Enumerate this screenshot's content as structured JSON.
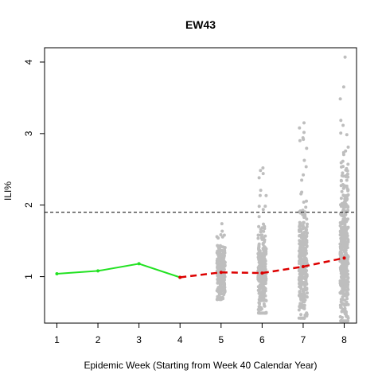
{
  "chart_data": {
    "type": "scatter",
    "title": "EW43",
    "xlabel": "Epidemic Week (Starting from Week 40 Calendar Year)",
    "ylabel": "ILI%",
    "x_ticks": [
      "1",
      "2",
      "3",
      "4",
      "5",
      "6",
      "7",
      "8"
    ],
    "y_ticks": [
      "1",
      "2",
      "3",
      "4"
    ],
    "xlim": [
      0.7,
      8.3
    ],
    "ylim": [
      0.35,
      4.2
    ],
    "threshold": 1.9,
    "observed": {
      "color": "#22e222",
      "x": [
        1,
        2,
        3,
        4
      ],
      "y": [
        1.04,
        1.08,
        1.18,
        0.99
      ]
    },
    "forecast_median": {
      "color": "#dd0000",
      "x": [
        4,
        5,
        6,
        7,
        8
      ],
      "y": [
        0.99,
        1.06,
        1.05,
        1.14,
        1.26
      ]
    },
    "simulations": [
      {
        "x": 5,
        "count": 260,
        "min": 0.68,
        "q1": 0.93,
        "median": 1.06,
        "q3": 1.2,
        "max": 1.74
      },
      {
        "x": 6,
        "count": 320,
        "min": 0.49,
        "q1": 0.86,
        "median": 1.05,
        "q3": 1.26,
        "max": 2.52
      },
      {
        "x": 7,
        "count": 360,
        "min": 0.42,
        "q1": 0.9,
        "median": 1.14,
        "q3": 1.42,
        "max": 3.15
      },
      {
        "x": 8,
        "count": 420,
        "min": 0.38,
        "q1": 0.95,
        "median": 1.26,
        "q3": 1.68,
        "max": 4.07
      }
    ],
    "simulation_color": "#bebebe",
    "threshold_color": "#000000"
  }
}
